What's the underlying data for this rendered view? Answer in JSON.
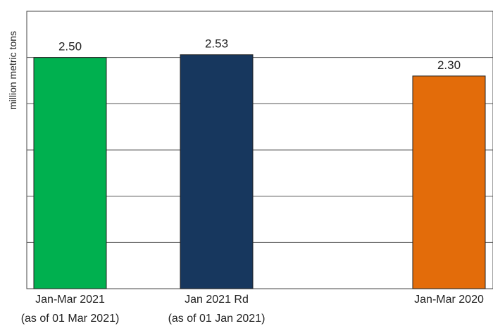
{
  "chart_data": {
    "type": "bar",
    "ylabel": "million metric tons",
    "ylim": [
      0,
      3.0
    ],
    "grid": true,
    "categories": [
      {
        "line1": "Jan-Mar 2021",
        "line2": "(as of  01 Mar 2021)"
      },
      {
        "line1": "Jan 2021 Rd",
        "line2": "(as of 01 Jan 2021)"
      },
      {
        "line1": "Jan-Mar 2020",
        "line2": ""
      }
    ],
    "values": [
      2.5,
      2.53,
      2.3
    ],
    "value_labels": [
      "2.50",
      "2.53",
      "2.30"
    ],
    "colors": [
      "#00B04F",
      "#17375E",
      "#E36C0A"
    ]
  }
}
